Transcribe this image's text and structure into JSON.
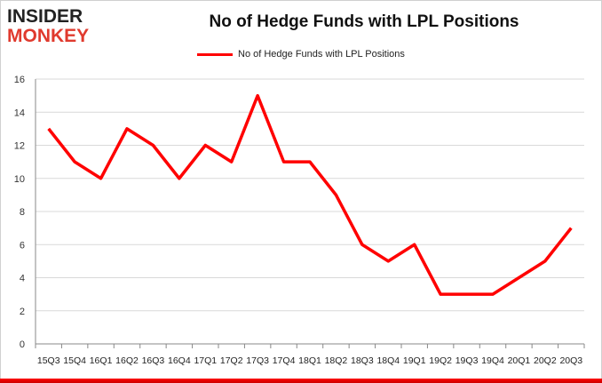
{
  "logo": {
    "line1": "INSIDER",
    "line2": "MONKEY"
  },
  "chart_data": {
    "type": "line",
    "title": "No of Hedge Funds with LPL Positions",
    "legend": [
      "No of Hedge Funds with LPL Positions"
    ],
    "legend_position": "top",
    "categories": [
      "15Q3",
      "15Q4",
      "16Q1",
      "16Q2",
      "16Q3",
      "16Q4",
      "17Q1",
      "17Q2",
      "17Q3",
      "17Q4",
      "18Q1",
      "18Q2",
      "18Q3",
      "18Q4",
      "19Q1",
      "19Q2",
      "19Q3",
      "19Q4",
      "20Q1",
      "20Q2",
      "20Q3"
    ],
    "series": [
      {
        "name": "No of Hedge Funds with LPL Positions",
        "values": [
          13,
          11,
          10,
          13,
          12,
          10,
          12,
          11,
          15,
          11,
          11,
          9,
          6,
          5,
          6,
          3,
          3,
          3,
          4,
          5,
          7
        ],
        "color": "#ff0000"
      }
    ],
    "ylim": [
      0,
      16
    ],
    "yticks": [
      0,
      2,
      4,
      6,
      8,
      10,
      12,
      14,
      16
    ],
    "grid": true,
    "xlabel": "",
    "ylabel": ""
  }
}
